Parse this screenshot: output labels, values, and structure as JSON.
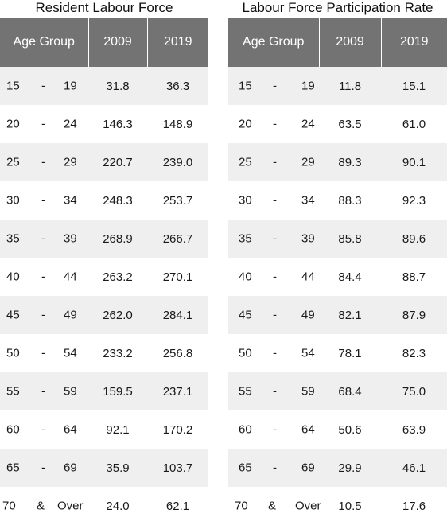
{
  "chart_data": [
    {
      "type": "table",
      "title": "Resident Labour Force",
      "columns": [
        "Age Group",
        "2009",
        "2019"
      ],
      "rows": [
        {
          "age": [
            "15",
            "-",
            "19"
          ],
          "values": [
            "31.8",
            "36.3"
          ]
        },
        {
          "age": [
            "20",
            "-",
            "24"
          ],
          "values": [
            "146.3",
            "148.9"
          ]
        },
        {
          "age": [
            "25",
            "-",
            "29"
          ],
          "values": [
            "220.7",
            "239.0"
          ]
        },
        {
          "age": [
            "30",
            "-",
            "34"
          ],
          "values": [
            "248.3",
            "253.7"
          ]
        },
        {
          "age": [
            "35",
            "-",
            "39"
          ],
          "values": [
            "268.9",
            "266.7"
          ]
        },
        {
          "age": [
            "40",
            "-",
            "44"
          ],
          "values": [
            "263.2",
            "270.1"
          ]
        },
        {
          "age": [
            "45",
            "-",
            "49"
          ],
          "values": [
            "262.0",
            "284.1"
          ]
        },
        {
          "age": [
            "50",
            "-",
            "54"
          ],
          "values": [
            "233.2",
            "256.8"
          ]
        },
        {
          "age": [
            "55",
            "-",
            "59"
          ],
          "values": [
            "159.5",
            "237.1"
          ]
        },
        {
          "age": [
            "60",
            "-",
            "64"
          ],
          "values": [
            "92.1",
            "170.2"
          ]
        },
        {
          "age": [
            "65",
            "-",
            "69"
          ],
          "values": [
            "35.9",
            "103.7"
          ]
        },
        {
          "age": [
            "70",
            "&",
            "Over"
          ],
          "values": [
            "24.0",
            "62.1"
          ]
        }
      ]
    },
    {
      "type": "table",
      "title": "Labour Force Participation Rate",
      "columns": [
        "Age Group",
        "2009",
        "2019"
      ],
      "rows": [
        {
          "age": [
            "15",
            "-",
            "19"
          ],
          "values": [
            "11.8",
            "15.1"
          ]
        },
        {
          "age": [
            "20",
            "-",
            "24"
          ],
          "values": [
            "63.5",
            "61.0"
          ]
        },
        {
          "age": [
            "25",
            "-",
            "29"
          ],
          "values": [
            "89.3",
            "90.1"
          ]
        },
        {
          "age": [
            "30",
            "-",
            "34"
          ],
          "values": [
            "88.3",
            "92.3"
          ]
        },
        {
          "age": [
            "35",
            "-",
            "39"
          ],
          "values": [
            "85.8",
            "89.6"
          ]
        },
        {
          "age": [
            "40",
            "-",
            "44"
          ],
          "values": [
            "84.4",
            "88.7"
          ]
        },
        {
          "age": [
            "45",
            "-",
            "49"
          ],
          "values": [
            "82.1",
            "87.9"
          ]
        },
        {
          "age": [
            "50",
            "-",
            "54"
          ],
          "values": [
            "78.1",
            "82.3"
          ]
        },
        {
          "age": [
            "55",
            "-",
            "59"
          ],
          "values": [
            "68.4",
            "75.0"
          ]
        },
        {
          "age": [
            "60",
            "-",
            "64"
          ],
          "values": [
            "50.6",
            "63.9"
          ]
        },
        {
          "age": [
            "65",
            "-",
            "69"
          ],
          "values": [
            "29.9",
            "46.1"
          ]
        },
        {
          "age": [
            "70",
            "&",
            "Over"
          ],
          "values": [
            "10.5",
            "17.6"
          ]
        }
      ]
    }
  ],
  "style": {
    "header_bg": "#737373",
    "header_text": "#ffffff",
    "stripe_bg": "#efefef",
    "row_bg": "#ffffff"
  }
}
